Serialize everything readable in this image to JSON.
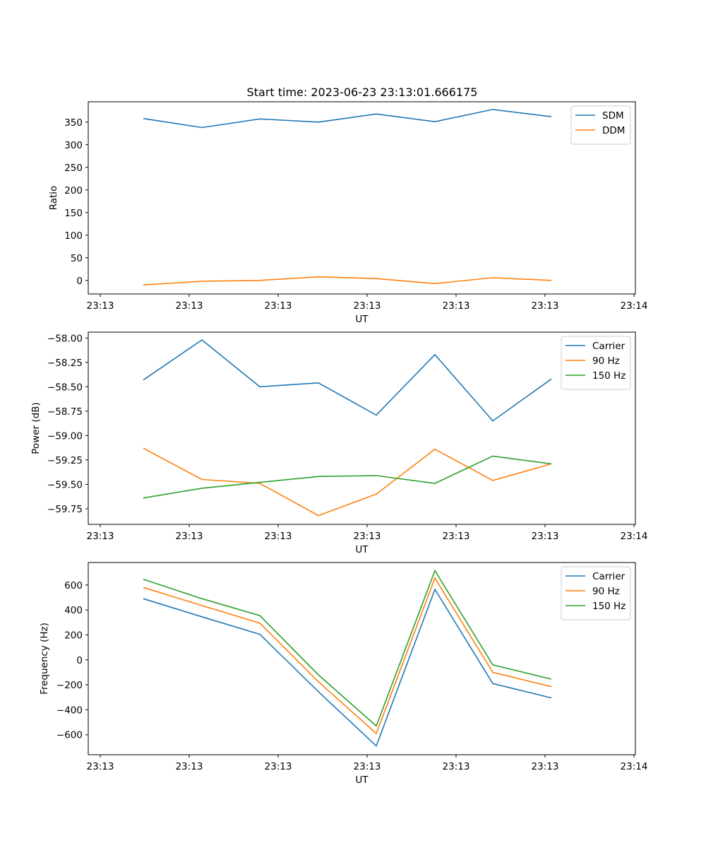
{
  "title": "Start time: 2023-06-23 23:13:01.666175",
  "chart_data": [
    {
      "type": "line",
      "title": "Start time: 2023-06-23 23:13:01.666175",
      "xlabel": "UT",
      "ylabel": "Ratio",
      "x_tick_labels": [
        "23:13",
        "23:13",
        "23:13",
        "23:13",
        "23:13",
        "23:13",
        "23:14"
      ],
      "y_ticks": [
        0,
        50,
        100,
        150,
        200,
        250,
        300,
        350
      ],
      "ylim": [
        -30,
        395
      ],
      "legend": "top-right",
      "series": [
        {
          "name": "SDM",
          "color": "#1f77b4",
          "values": [
            358,
            338,
            357,
            350,
            368,
            351,
            378,
            362
          ]
        },
        {
          "name": "DDM",
          "color": "#ff7f0e",
          "values": [
            -10,
            -2,
            0,
            8,
            4,
            -7,
            6,
            0
          ]
        }
      ]
    },
    {
      "type": "line",
      "title": "",
      "xlabel": "UT",
      "ylabel": "Power (dB)",
      "x_tick_labels": [
        "23:13",
        "23:13",
        "23:13",
        "23:13",
        "23:13",
        "23:13",
        "23:14"
      ],
      "y_ticks": [
        -58.0,
        -58.25,
        -58.5,
        -58.75,
        -59.0,
        -59.25,
        -59.5,
        -59.75
      ],
      "y_tick_labels": [
        "−58.00",
        "−58.25",
        "−58.50",
        "−58.75",
        "−59.00",
        "−59.25",
        "−59.50",
        "−59.75"
      ],
      "ylim": [
        -59.91,
        -57.94
      ],
      "legend": "top-right",
      "series": [
        {
          "name": "Carrier",
          "color": "#1f77b4",
          "values": [
            -58.43,
            -58.02,
            -58.5,
            -58.46,
            -58.79,
            -58.17,
            -58.85,
            -58.42
          ]
        },
        {
          "name": "90 Hz",
          "color": "#ff7f0e",
          "values": [
            -59.13,
            -59.45,
            -59.49,
            -59.82,
            -59.6,
            -59.14,
            -59.46,
            -59.29
          ]
        },
        {
          "name": "150 Hz",
          "color": "#2ca02c",
          "values": [
            -59.64,
            -59.54,
            -59.48,
            -59.42,
            -59.41,
            -59.49,
            -59.21,
            -59.29
          ]
        }
      ]
    },
    {
      "type": "line",
      "title": "",
      "xlabel": "UT",
      "ylabel": "Frequency (Hz)",
      "x_tick_labels": [
        "23:13",
        "23:13",
        "23:13",
        "23:13",
        "23:13",
        "23:13",
        "23:14"
      ],
      "y_ticks": [
        600,
        400,
        200,
        0,
        -200,
        -400,
        -600
      ],
      "y_tick_labels": [
        "600",
        "400",
        "200",
        "0",
        "−200",
        "−400",
        "−600"
      ],
      "ylim": [
        -760,
        780
      ],
      "legend": "top-right",
      "series": [
        {
          "name": "Carrier",
          "color": "#1f77b4",
          "values": [
            490,
            345,
            205,
            -255,
            -690,
            565,
            -190,
            -305
          ]
        },
        {
          "name": "90 Hz",
          "color": "#ff7f0e",
          "values": [
            580,
            435,
            295,
            -175,
            -590,
            655,
            -100,
            -215
          ]
        },
        {
          "name": "150 Hz",
          "color": "#2ca02c",
          "values": [
            645,
            490,
            355,
            -120,
            -530,
            715,
            -40,
            -155
          ]
        }
      ]
    }
  ]
}
